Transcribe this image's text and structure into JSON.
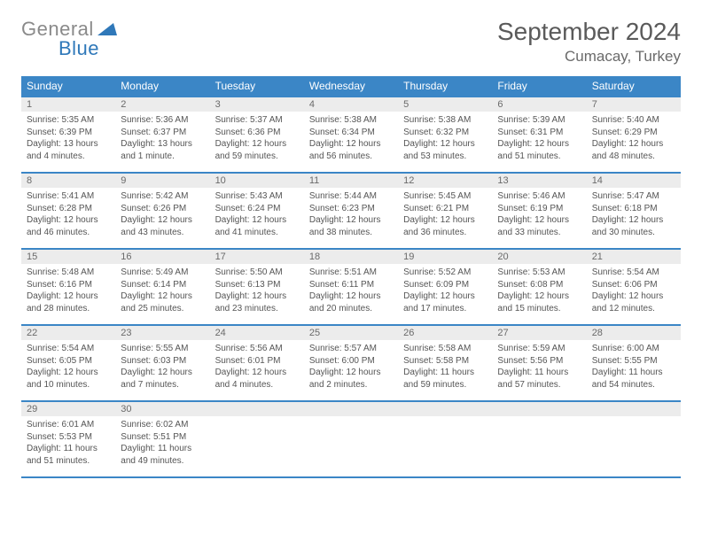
{
  "logo": {
    "word1": "General",
    "word2": "Blue",
    "icon_color": "#2f78b9"
  },
  "title": "September 2024",
  "location": "Cumacay, Turkey",
  "colors": {
    "header_bg": "#3b86c6",
    "header_text": "#ffffff",
    "border": "#3b86c6",
    "daynum_bg": "#ececec",
    "body_text": "#555"
  },
  "day_headers": [
    "Sunday",
    "Monday",
    "Tuesday",
    "Wednesday",
    "Thursday",
    "Friday",
    "Saturday"
  ],
  "weeks": [
    [
      {
        "n": "1",
        "sr": "5:35 AM",
        "ss": "6:39 PM",
        "dl": "13 hours and 4 minutes."
      },
      {
        "n": "2",
        "sr": "5:36 AM",
        "ss": "6:37 PM",
        "dl": "13 hours and 1 minute."
      },
      {
        "n": "3",
        "sr": "5:37 AM",
        "ss": "6:36 PM",
        "dl": "12 hours and 59 minutes."
      },
      {
        "n": "4",
        "sr": "5:38 AM",
        "ss": "6:34 PM",
        "dl": "12 hours and 56 minutes."
      },
      {
        "n": "5",
        "sr": "5:38 AM",
        "ss": "6:32 PM",
        "dl": "12 hours and 53 minutes."
      },
      {
        "n": "6",
        "sr": "5:39 AM",
        "ss": "6:31 PM",
        "dl": "12 hours and 51 minutes."
      },
      {
        "n": "7",
        "sr": "5:40 AM",
        "ss": "6:29 PM",
        "dl": "12 hours and 48 minutes."
      }
    ],
    [
      {
        "n": "8",
        "sr": "5:41 AM",
        "ss": "6:28 PM",
        "dl": "12 hours and 46 minutes."
      },
      {
        "n": "9",
        "sr": "5:42 AM",
        "ss": "6:26 PM",
        "dl": "12 hours and 43 minutes."
      },
      {
        "n": "10",
        "sr": "5:43 AM",
        "ss": "6:24 PM",
        "dl": "12 hours and 41 minutes."
      },
      {
        "n": "11",
        "sr": "5:44 AM",
        "ss": "6:23 PM",
        "dl": "12 hours and 38 minutes."
      },
      {
        "n": "12",
        "sr": "5:45 AM",
        "ss": "6:21 PM",
        "dl": "12 hours and 36 minutes."
      },
      {
        "n": "13",
        "sr": "5:46 AM",
        "ss": "6:19 PM",
        "dl": "12 hours and 33 minutes."
      },
      {
        "n": "14",
        "sr": "5:47 AM",
        "ss": "6:18 PM",
        "dl": "12 hours and 30 minutes."
      }
    ],
    [
      {
        "n": "15",
        "sr": "5:48 AM",
        "ss": "6:16 PM",
        "dl": "12 hours and 28 minutes."
      },
      {
        "n": "16",
        "sr": "5:49 AM",
        "ss": "6:14 PM",
        "dl": "12 hours and 25 minutes."
      },
      {
        "n": "17",
        "sr": "5:50 AM",
        "ss": "6:13 PM",
        "dl": "12 hours and 23 minutes."
      },
      {
        "n": "18",
        "sr": "5:51 AM",
        "ss": "6:11 PM",
        "dl": "12 hours and 20 minutes."
      },
      {
        "n": "19",
        "sr": "5:52 AM",
        "ss": "6:09 PM",
        "dl": "12 hours and 17 minutes."
      },
      {
        "n": "20",
        "sr": "5:53 AM",
        "ss": "6:08 PM",
        "dl": "12 hours and 15 minutes."
      },
      {
        "n": "21",
        "sr": "5:54 AM",
        "ss": "6:06 PM",
        "dl": "12 hours and 12 minutes."
      }
    ],
    [
      {
        "n": "22",
        "sr": "5:54 AM",
        "ss": "6:05 PM",
        "dl": "12 hours and 10 minutes."
      },
      {
        "n": "23",
        "sr": "5:55 AM",
        "ss": "6:03 PM",
        "dl": "12 hours and 7 minutes."
      },
      {
        "n": "24",
        "sr": "5:56 AM",
        "ss": "6:01 PM",
        "dl": "12 hours and 4 minutes."
      },
      {
        "n": "25",
        "sr": "5:57 AM",
        "ss": "6:00 PM",
        "dl": "12 hours and 2 minutes."
      },
      {
        "n": "26",
        "sr": "5:58 AM",
        "ss": "5:58 PM",
        "dl": "11 hours and 59 minutes."
      },
      {
        "n": "27",
        "sr": "5:59 AM",
        "ss": "5:56 PM",
        "dl": "11 hours and 57 minutes."
      },
      {
        "n": "28",
        "sr": "6:00 AM",
        "ss": "5:55 PM",
        "dl": "11 hours and 54 minutes."
      }
    ],
    [
      {
        "n": "29",
        "sr": "6:01 AM",
        "ss": "5:53 PM",
        "dl": "11 hours and 51 minutes."
      },
      {
        "n": "30",
        "sr": "6:02 AM",
        "ss": "5:51 PM",
        "dl": "11 hours and 49 minutes."
      },
      null,
      null,
      null,
      null,
      null
    ]
  ],
  "labels": {
    "sunrise": "Sunrise: ",
    "sunset": "Sunset: ",
    "daylight": "Daylight: "
  }
}
